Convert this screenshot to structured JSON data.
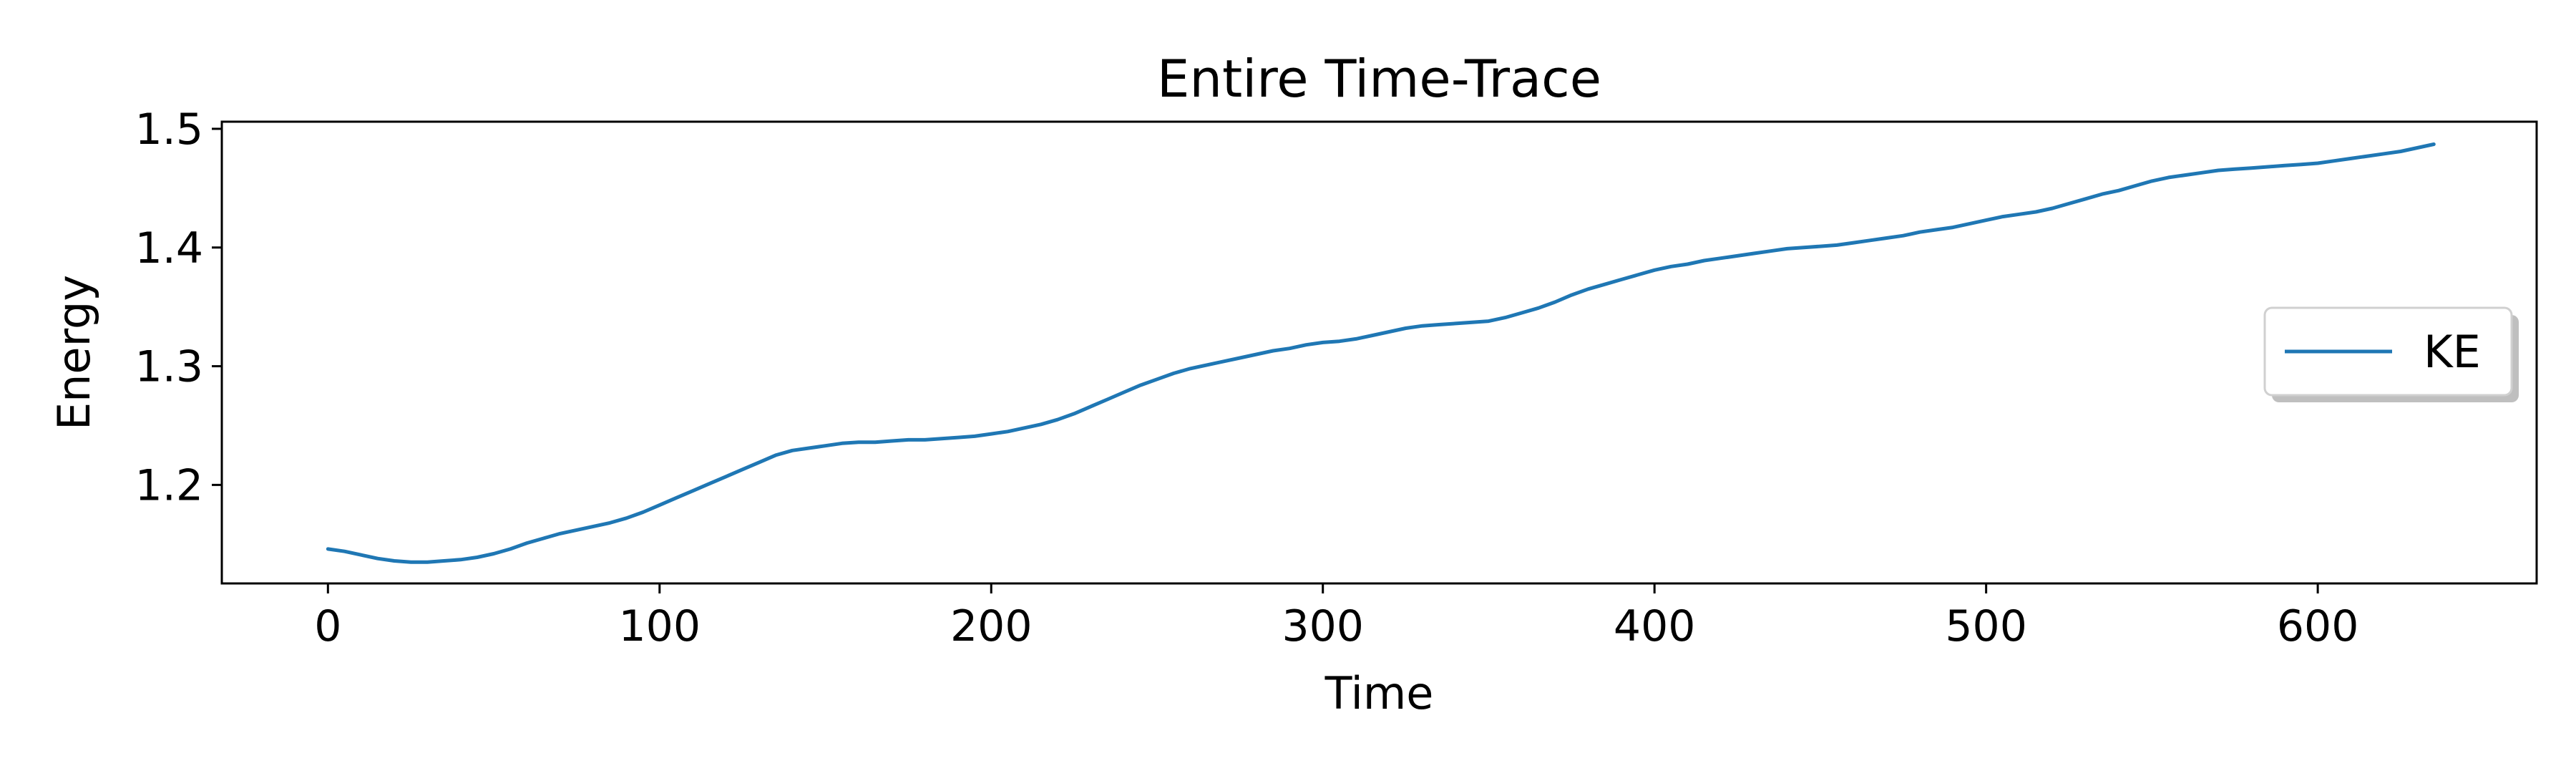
{
  "chart_data": {
    "type": "line",
    "title": "Entire Time-Trace",
    "xlabel": "Time",
    "ylabel": "Energy",
    "xlim": [
      -32,
      666
    ],
    "ylim": [
      1.117,
      1.506
    ],
    "xticks": [
      0,
      100,
      200,
      300,
      400,
      500,
      600
    ],
    "xtick_labels": [
      "0",
      "100",
      "200",
      "300",
      "400",
      "500",
      "600"
    ],
    "yticks": [
      1.2,
      1.3,
      1.4,
      1.5
    ],
    "ytick_labels": [
      "1.2",
      "1.3",
      "1.4",
      "1.5"
    ],
    "grid": false,
    "legend_position": "center-right",
    "series": [
      {
        "name": "KE",
        "color": "#1f77b4",
        "x": [
          0,
          5,
          10,
          15,
          20,
          25,
          30,
          35,
          40,
          45,
          50,
          55,
          60,
          65,
          70,
          75,
          80,
          85,
          90,
          95,
          100,
          105,
          110,
          115,
          120,
          125,
          130,
          135,
          140,
          145,
          150,
          155,
          160,
          165,
          170,
          175,
          180,
          185,
          190,
          195,
          200,
          205,
          210,
          215,
          220,
          225,
          230,
          235,
          240,
          245,
          250,
          255,
          260,
          265,
          270,
          275,
          280,
          285,
          290,
          295,
          300,
          305,
          310,
          315,
          320,
          325,
          330,
          335,
          340,
          345,
          350,
          355,
          360,
          365,
          370,
          375,
          380,
          385,
          390,
          395,
          400,
          405,
          410,
          415,
          420,
          425,
          430,
          435,
          440,
          445,
          450,
          455,
          460,
          465,
          470,
          475,
          480,
          485,
          490,
          495,
          500,
          505,
          510,
          515,
          520,
          525,
          530,
          535,
          540,
          545,
          550,
          555,
          560,
          565,
          570,
          575,
          580,
          585,
          590,
          595,
          600,
          605,
          610,
          615,
          620,
          625,
          630,
          635
        ],
        "y": [
          1.146,
          1.144,
          1.141,
          1.138,
          1.136,
          1.135,
          1.135,
          1.136,
          1.137,
          1.139,
          1.142,
          1.146,
          1.151,
          1.155,
          1.159,
          1.162,
          1.165,
          1.168,
          1.172,
          1.177,
          1.183,
          1.189,
          1.195,
          1.201,
          1.207,
          1.213,
          1.219,
          1.225,
          1.229,
          1.231,
          1.233,
          1.235,
          1.236,
          1.236,
          1.237,
          1.238,
          1.238,
          1.239,
          1.24,
          1.241,
          1.243,
          1.245,
          1.248,
          1.251,
          1.255,
          1.26,
          1.266,
          1.272,
          1.278,
          1.284,
          1.289,
          1.294,
          1.298,
          1.301,
          1.304,
          1.307,
          1.31,
          1.313,
          1.315,
          1.318,
          1.32,
          1.321,
          1.323,
          1.326,
          1.329,
          1.332,
          1.334,
          1.335,
          1.336,
          1.337,
          1.338,
          1.341,
          1.345,
          1.349,
          1.354,
          1.36,
          1.365,
          1.369,
          1.373,
          1.377,
          1.381,
          1.384,
          1.386,
          1.389,
          1.391,
          1.393,
          1.395,
          1.397,
          1.399,
          1.4,
          1.401,
          1.402,
          1.404,
          1.406,
          1.408,
          1.41,
          1.413,
          1.415,
          1.417,
          1.42,
          1.423,
          1.426,
          1.428,
          1.43,
          1.433,
          1.437,
          1.441,
          1.445,
          1.448,
          1.452,
          1.456,
          1.459,
          1.461,
          1.463,
          1.465,
          1.466,
          1.467,
          1.468,
          1.469,
          1.47,
          1.471,
          1.473,
          1.475,
          1.477,
          1.479,
          1.481,
          1.484,
          1.487
        ]
      }
    ]
  }
}
